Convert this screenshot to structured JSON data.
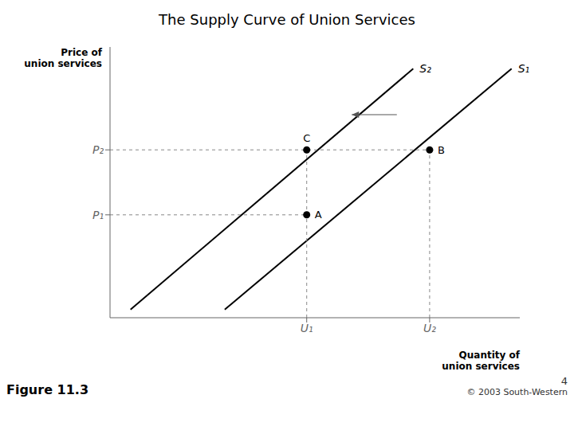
{
  "chart_data": {
    "type": "line",
    "title": "The Supply Curve of Union Services",
    "x_label": "Quantity of\nunion services",
    "y_label": "Price of\nunion services",
    "xlim": [
      0,
      10
    ],
    "ylim": [
      0,
      10
    ],
    "xticks": [
      {
        "value": 4.8,
        "label": "U₁"
      },
      {
        "value": 7.8,
        "label": "U₂"
      }
    ],
    "yticks": [
      {
        "value": 3.8,
        "label": "P₁"
      },
      {
        "value": 6.2,
        "label": "P₂"
      }
    ],
    "grid": false,
    "series": [
      {
        "name": "S₁",
        "type": "line",
        "color": "#000000",
        "line_style": "solid",
        "x": [
          2.8,
          9.8
        ],
        "values": [
          0.3,
          9.2
        ]
      },
      {
        "name": "S₂",
        "type": "line",
        "color": "#000000",
        "line_style": "solid",
        "x": [
          0.5,
          7.4
        ],
        "values": [
          0.3,
          9.2
        ]
      },
      {
        "type": "line",
        "color": "#888888",
        "line_style": "dashed",
        "x": [
          0,
          4.8
        ],
        "values": [
          3.8,
          3.8
        ]
      },
      {
        "type": "line",
        "color": "#888888",
        "line_style": "dashed",
        "x": [
          0,
          7.8
        ],
        "values": [
          6.2,
          6.2
        ]
      },
      {
        "type": "line",
        "color": "#888888",
        "line_style": "dashed",
        "x": [
          4.8,
          4.8
        ],
        "values": [
          0,
          6.2
        ]
      },
      {
        "type": "line",
        "color": "#888888",
        "line_style": "dashed",
        "x": [
          7.8,
          7.8
        ],
        "values": [
          0,
          6.2
        ]
      },
      {
        "type": "scatter",
        "color": "#000000",
        "marker": "circle",
        "x": [
          4.8,
          7.8,
          4.8
        ],
        "values": [
          3.8,
          6.2,
          6.2
        ],
        "labels": [
          "A",
          "B",
          "C"
        ]
      }
    ],
    "annotations": [
      {
        "type": "arrow",
        "color": "#555555",
        "x": [
          7.0,
          5.9
        ],
        "y": [
          7.5,
          7.5
        ]
      },
      {
        "type": "text",
        "text": "Figure 11.3"
      },
      {
        "type": "text",
        "text": "4"
      },
      {
        "type": "text",
        "text": "© 2003 South-Western"
      }
    ]
  }
}
